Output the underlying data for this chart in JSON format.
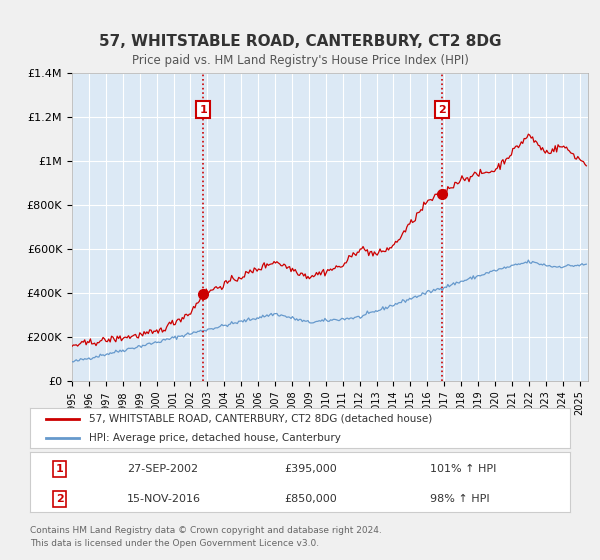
{
  "title": "57, WHITSTABLE ROAD, CANTERBURY, CT2 8DG",
  "subtitle": "Price paid vs. HM Land Registry's House Price Index (HPI)",
  "bg_color": "#dce9f5",
  "fig_bg_color": "#f0f0f0",
  "red_line_color": "#cc0000",
  "blue_line_color": "#6699cc",
  "vline_color": "#cc0000",
  "annotation_box_color": "#cc0000",
  "ylim": [
    0,
    1400000
  ],
  "xlim_start": 1995.0,
  "xlim_end": 2025.5,
  "purchase1_year": 2002.75,
  "purchase1_price": 395000,
  "purchase1_label": "1",
  "purchase2_year": 2016.875,
  "purchase2_price": 850000,
  "purchase2_label": "2",
  "legend_line1": "57, WHITSTABLE ROAD, CANTERBURY, CT2 8DG (detached house)",
  "legend_line2": "HPI: Average price, detached house, Canterbury",
  "table_row1": [
    "1",
    "27-SEP-2002",
    "£395,000",
    "101% ↑ HPI"
  ],
  "table_row2": [
    "2",
    "15-NOV-2016",
    "£850,000",
    "98% ↑ HPI"
  ],
  "footer1": "Contains HM Land Registry data © Crown copyright and database right 2024.",
  "footer2": "This data is licensed under the Open Government Licence v3.0.",
  "yticks": [
    0,
    200000,
    400000,
    600000,
    800000,
    1000000,
    1200000,
    1400000
  ],
  "ytick_labels": [
    "£0",
    "£200K",
    "£400K",
    "£600K",
    "£800K",
    "£1M",
    "£1.2M",
    "£1.4M"
  ],
  "xticks": [
    1995,
    1996,
    1997,
    1998,
    1999,
    2000,
    2001,
    2002,
    2003,
    2004,
    2005,
    2006,
    2007,
    2008,
    2009,
    2010,
    2011,
    2012,
    2013,
    2014,
    2015,
    2016,
    2017,
    2018,
    2019,
    2020,
    2021,
    2022,
    2023,
    2024,
    2025
  ]
}
